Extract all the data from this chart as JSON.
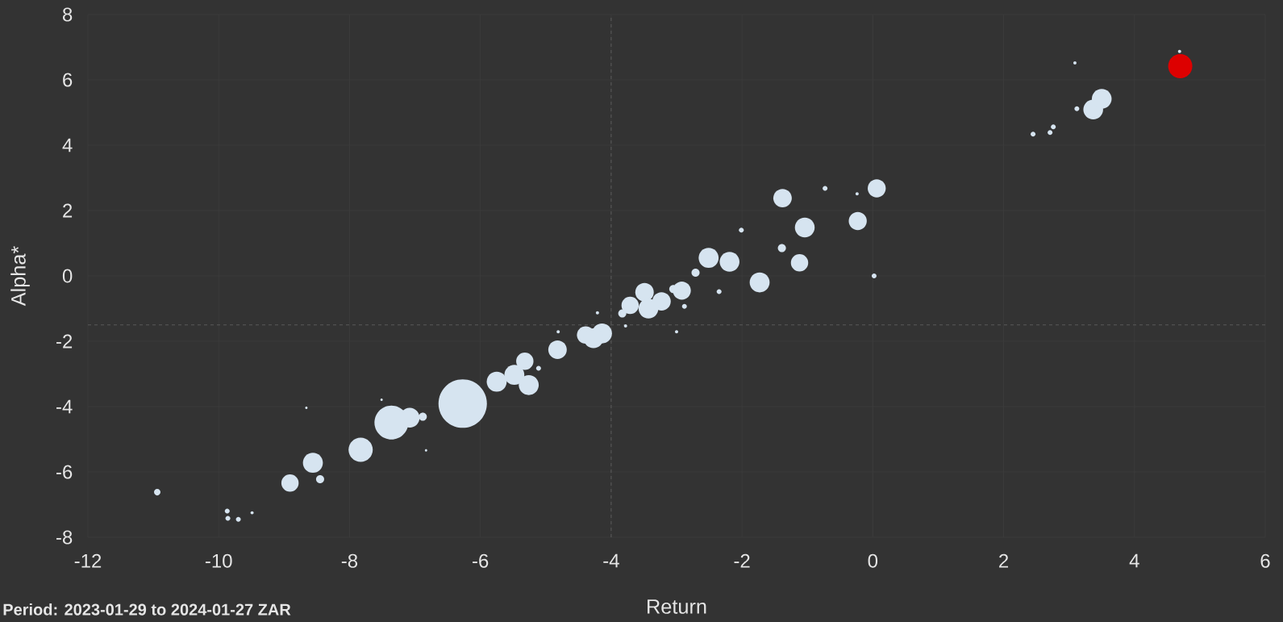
{
  "chart_data": {
    "type": "bubble",
    "xlabel": "Return",
    "ylabel": "Alpha*",
    "annotations": [
      "**Period: 2023-01-29 to 2024-01-27 ZAR**"
    ],
    "xlim": [
      -12,
      6
    ],
    "ylim": [
      -8,
      8
    ],
    "xticks": [
      -12,
      -10,
      -8,
      -6,
      -4,
      -2,
      0,
      2,
      4,
      6
    ],
    "yticks": [
      -8,
      -6,
      -4,
      -2,
      0,
      2,
      4,
      6,
      8
    ],
    "grid": true,
    "ref_lines": [
      {
        "axis": "x",
        "value": -4,
        "color": "#5a5a5a",
        "line_style": "dashed"
      },
      {
        "axis": "y",
        "value": -1.5,
        "color": "#5a5a5a",
        "line_style": "dashed"
      }
    ],
    "series": [
      {
        "color": "#d6e4f0",
        "x": [
          -10.94,
          -9.87,
          -9.86,
          -9.7,
          -9.49,
          -8.91,
          -8.56,
          -8.45,
          -8.66,
          -7.83,
          -7.36,
          -7.08,
          -6.88,
          -7.51,
          -6.83,
          -6.27,
          -5.75,
          -5.48,
          -5.26,
          -5.32,
          -5.11,
          -4.82,
          -4.81,
          -4.39,
          -4.14,
          -4.27,
          -3.83,
          -3.71,
          -3.49,
          -3.43,
          -3.23,
          -3.05,
          -2.92,
          -2.88,
          -4.21,
          -3.78,
          -3.0,
          -2.51,
          -2.71,
          -2.19,
          -2.35,
          -2.01,
          -1.73,
          -1.38,
          -1.39,
          -1.12,
          -1.04,
          -0.73,
          -0.23,
          0.06,
          0.02,
          -0.24,
          2.45,
          2.71,
          2.76,
          3.09,
          3.12,
          3.37,
          3.5,
          4.69
        ],
        "values": [
          -6.62,
          -7.2,
          -7.42,
          -7.45,
          -7.25,
          -6.34,
          -5.72,
          -6.22,
          -4.04,
          -5.32,
          -4.49,
          -4.34,
          -4.31,
          -3.79,
          -5.34,
          -3.91,
          -3.24,
          -3.03,
          -3.34,
          -2.61,
          -2.83,
          -2.26,
          -1.71,
          -1.81,
          -1.76,
          -1.91,
          -1.15,
          -0.9,
          -0.5,
          -1.0,
          -0.78,
          -0.4,
          -0.45,
          -0.93,
          -1.13,
          -1.53,
          -1.71,
          0.55,
          0.1,
          0.43,
          -0.48,
          1.4,
          -0.2,
          2.38,
          0.85,
          0.4,
          1.48,
          2.68,
          1.68,
          2.68,
          0.0,
          2.51,
          4.34,
          4.39,
          4.56,
          6.52,
          5.12,
          5.09,
          5.42,
          6.87
        ],
        "sizes": [
          0.018,
          0.01,
          0.01,
          0.01,
          0.0044,
          0.128,
          0.17,
          0.028,
          0.0025,
          0.25,
          0.49,
          0.167,
          0.028,
          0.0025,
          0.0025,
          1,
          0.17,
          0.17,
          0.17,
          0.128,
          0.01,
          0.146,
          0.0044,
          0.13,
          0.17,
          0.167,
          0.028,
          0.128,
          0.146,
          0.167,
          0.146,
          0.028,
          0.139,
          0.01,
          0.0044,
          0.0044,
          0.0044,
          0.17,
          0.028,
          0.167,
          0.01,
          0.01,
          0.17,
          0.146,
          0.028,
          0.128,
          0.167,
          0.01,
          0.139,
          0.139,
          0.01,
          0.0044,
          0.01,
          0.01,
          0.01,
          0.0044,
          0.01,
          0.167,
          0.167,
          0.0044
        ]
      },
      {
        "color": "#dd0000",
        "x": [
          4.7
        ],
        "values": [
          6.42
        ],
        "sizes": [
          0.25
        ]
      }
    ]
  }
}
